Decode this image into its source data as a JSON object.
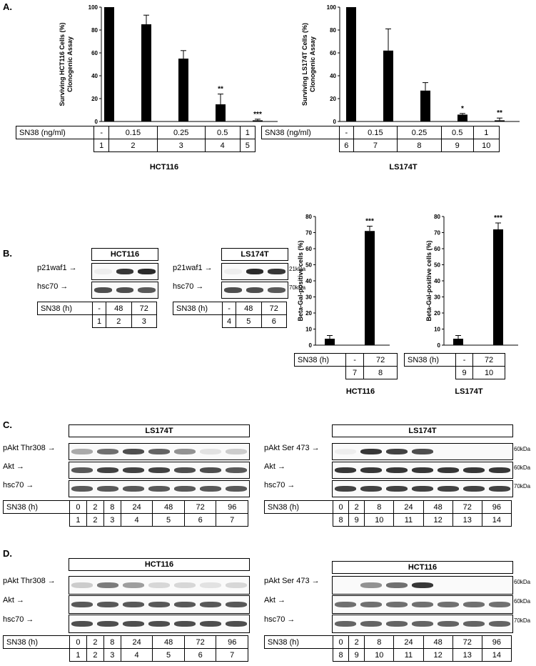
{
  "panels": {
    "A": "A.",
    "B": "B.",
    "C": "C.",
    "D": "D."
  },
  "chart_data": [
    {
      "type": "bar",
      "panel": "A",
      "ylabel_line1": "Surviving HCT116 Cells (%)",
      "ylabel_line2": "Clonogenic Assay",
      "ylim": [
        0,
        100
      ],
      "yticks": [
        "0",
        "20",
        "40",
        "60",
        "80",
        "100"
      ],
      "categories": [
        "1",
        "2",
        "3",
        "4",
        "5"
      ],
      "values": [
        100,
        85,
        55,
        15,
        1
      ],
      "errors": [
        0,
        8,
        7,
        9,
        1
      ],
      "annotations": [
        "",
        "",
        "",
        "**",
        "***"
      ],
      "condition_label": "SN38 (ng/ml)",
      "conditions": [
        "-",
        "0.15",
        "0.25",
        "0.5",
        "1"
      ],
      "cell_line": "HCT116"
    },
    {
      "type": "bar",
      "panel": "A",
      "ylabel_line1": "Surviving LS174T Cells (%)",
      "ylabel_line2": "Clonogenic Assay",
      "ylim": [
        0,
        100
      ],
      "yticks": [
        "0",
        "20",
        "40",
        "60",
        "80",
        "100"
      ],
      "categories": [
        "6",
        "7",
        "8",
        "9",
        "10"
      ],
      "values": [
        100,
        62,
        27,
        6,
        1
      ],
      "errors": [
        0,
        19,
        7,
        1,
        2
      ],
      "annotations": [
        "",
        "",
        "",
        "*",
        "**"
      ],
      "condition_label": "SN38 (ng/ml)",
      "conditions": [
        "-",
        "0.15",
        "0.25",
        "0.5",
        "1"
      ],
      "cell_line": "LS174T"
    },
    {
      "type": "bar",
      "panel": "B",
      "ylabel_line1": "Beta-Gal-positive cells (%)",
      "ylim": [
        0,
        80
      ],
      "yticks": [
        "0",
        "10",
        "20",
        "30",
        "40",
        "50",
        "60",
        "70",
        "80"
      ],
      "categories": [
        "7",
        "8"
      ],
      "values": [
        4,
        71
      ],
      "errors": [
        2,
        3
      ],
      "annotations": [
        "",
        "***"
      ],
      "condition_label": "SN38 (h)",
      "conditions": [
        "-",
        "72"
      ],
      "cell_line": "HCT116"
    },
    {
      "type": "bar",
      "panel": "B",
      "ylabel_line1": "Beta-Gal-positive cells (%)",
      "ylim": [
        0,
        80
      ],
      "yticks": [
        "0",
        "10",
        "20",
        "30",
        "40",
        "50",
        "60",
        "70",
        "80"
      ],
      "categories": [
        "9",
        "10"
      ],
      "values": [
        4,
        72
      ],
      "errors": [
        2,
        4
      ],
      "annotations": [
        "",
        "***"
      ],
      "condition_label": "SN38 (h)",
      "conditions": [
        "-",
        "72"
      ],
      "cell_line": "LS174T"
    }
  ],
  "blotB": {
    "left": {
      "title": "HCT116",
      "rows": [
        "p21waf1",
        "hsc70"
      ],
      "cond_label": "SN38 (h)",
      "conds": [
        "-",
        "48",
        "72"
      ],
      "lanes": [
        "1",
        "2",
        "3"
      ]
    },
    "right": {
      "title": "LS174T",
      "rows": [
        "p21waf1",
        "hsc70"
      ],
      "cond_label": "SN38 (h)",
      "conds": [
        "-",
        "48",
        "72"
      ],
      "lanes": [
        "4",
        "5",
        "6"
      ],
      "kda": [
        "21kDa",
        "70kDa"
      ]
    }
  },
  "blotC": {
    "left": {
      "title": "LS174T",
      "rows": [
        "pAkt Thr308",
        "Akt",
        "hsc70"
      ],
      "cond_label": "SN38 (h)",
      "conds": [
        "0",
        "2",
        "8",
        "24",
        "48",
        "72",
        "96"
      ],
      "lanes": [
        "1",
        "2",
        "3",
        "4",
        "5",
        "6",
        "7"
      ]
    },
    "right": {
      "title": "LS174T",
      "rows": [
        "pAkt Ser 473",
        "Akt",
        "hsc70"
      ],
      "cond_label": "SN38 (h)",
      "conds": [
        "0",
        "2",
        "8",
        "24",
        "48",
        "72",
        "96"
      ],
      "lanes": [
        "8",
        "9",
        "10",
        "11",
        "12",
        "13",
        "14"
      ],
      "kda": [
        "60kDa",
        "60kDa",
        "70kDa"
      ]
    }
  },
  "blotD": {
    "left": {
      "title": "HCT116",
      "rows": [
        "pAkt Thr308",
        "Akt",
        "hsc70"
      ],
      "cond_label": "SN38 (h)",
      "conds": [
        "0",
        "2",
        "8",
        "24",
        "48",
        "72",
        "96"
      ],
      "lanes": [
        "1",
        "2",
        "3",
        "4",
        "5",
        "6",
        "7"
      ]
    },
    "right": {
      "title": "HCT116",
      "rows": [
        "pAkt Ser 473",
        "Akt",
        "hsc70"
      ],
      "cond_label": "SN38 (h)",
      "conds": [
        "0",
        "2",
        "8",
        "24",
        "48",
        "72",
        "96"
      ],
      "lanes": [
        "8",
        "9",
        "10",
        "11",
        "12",
        "13",
        "14"
      ],
      "kda": [
        "60kDa",
        "60kDa",
        "70kDa"
      ]
    }
  },
  "arrow": "→"
}
